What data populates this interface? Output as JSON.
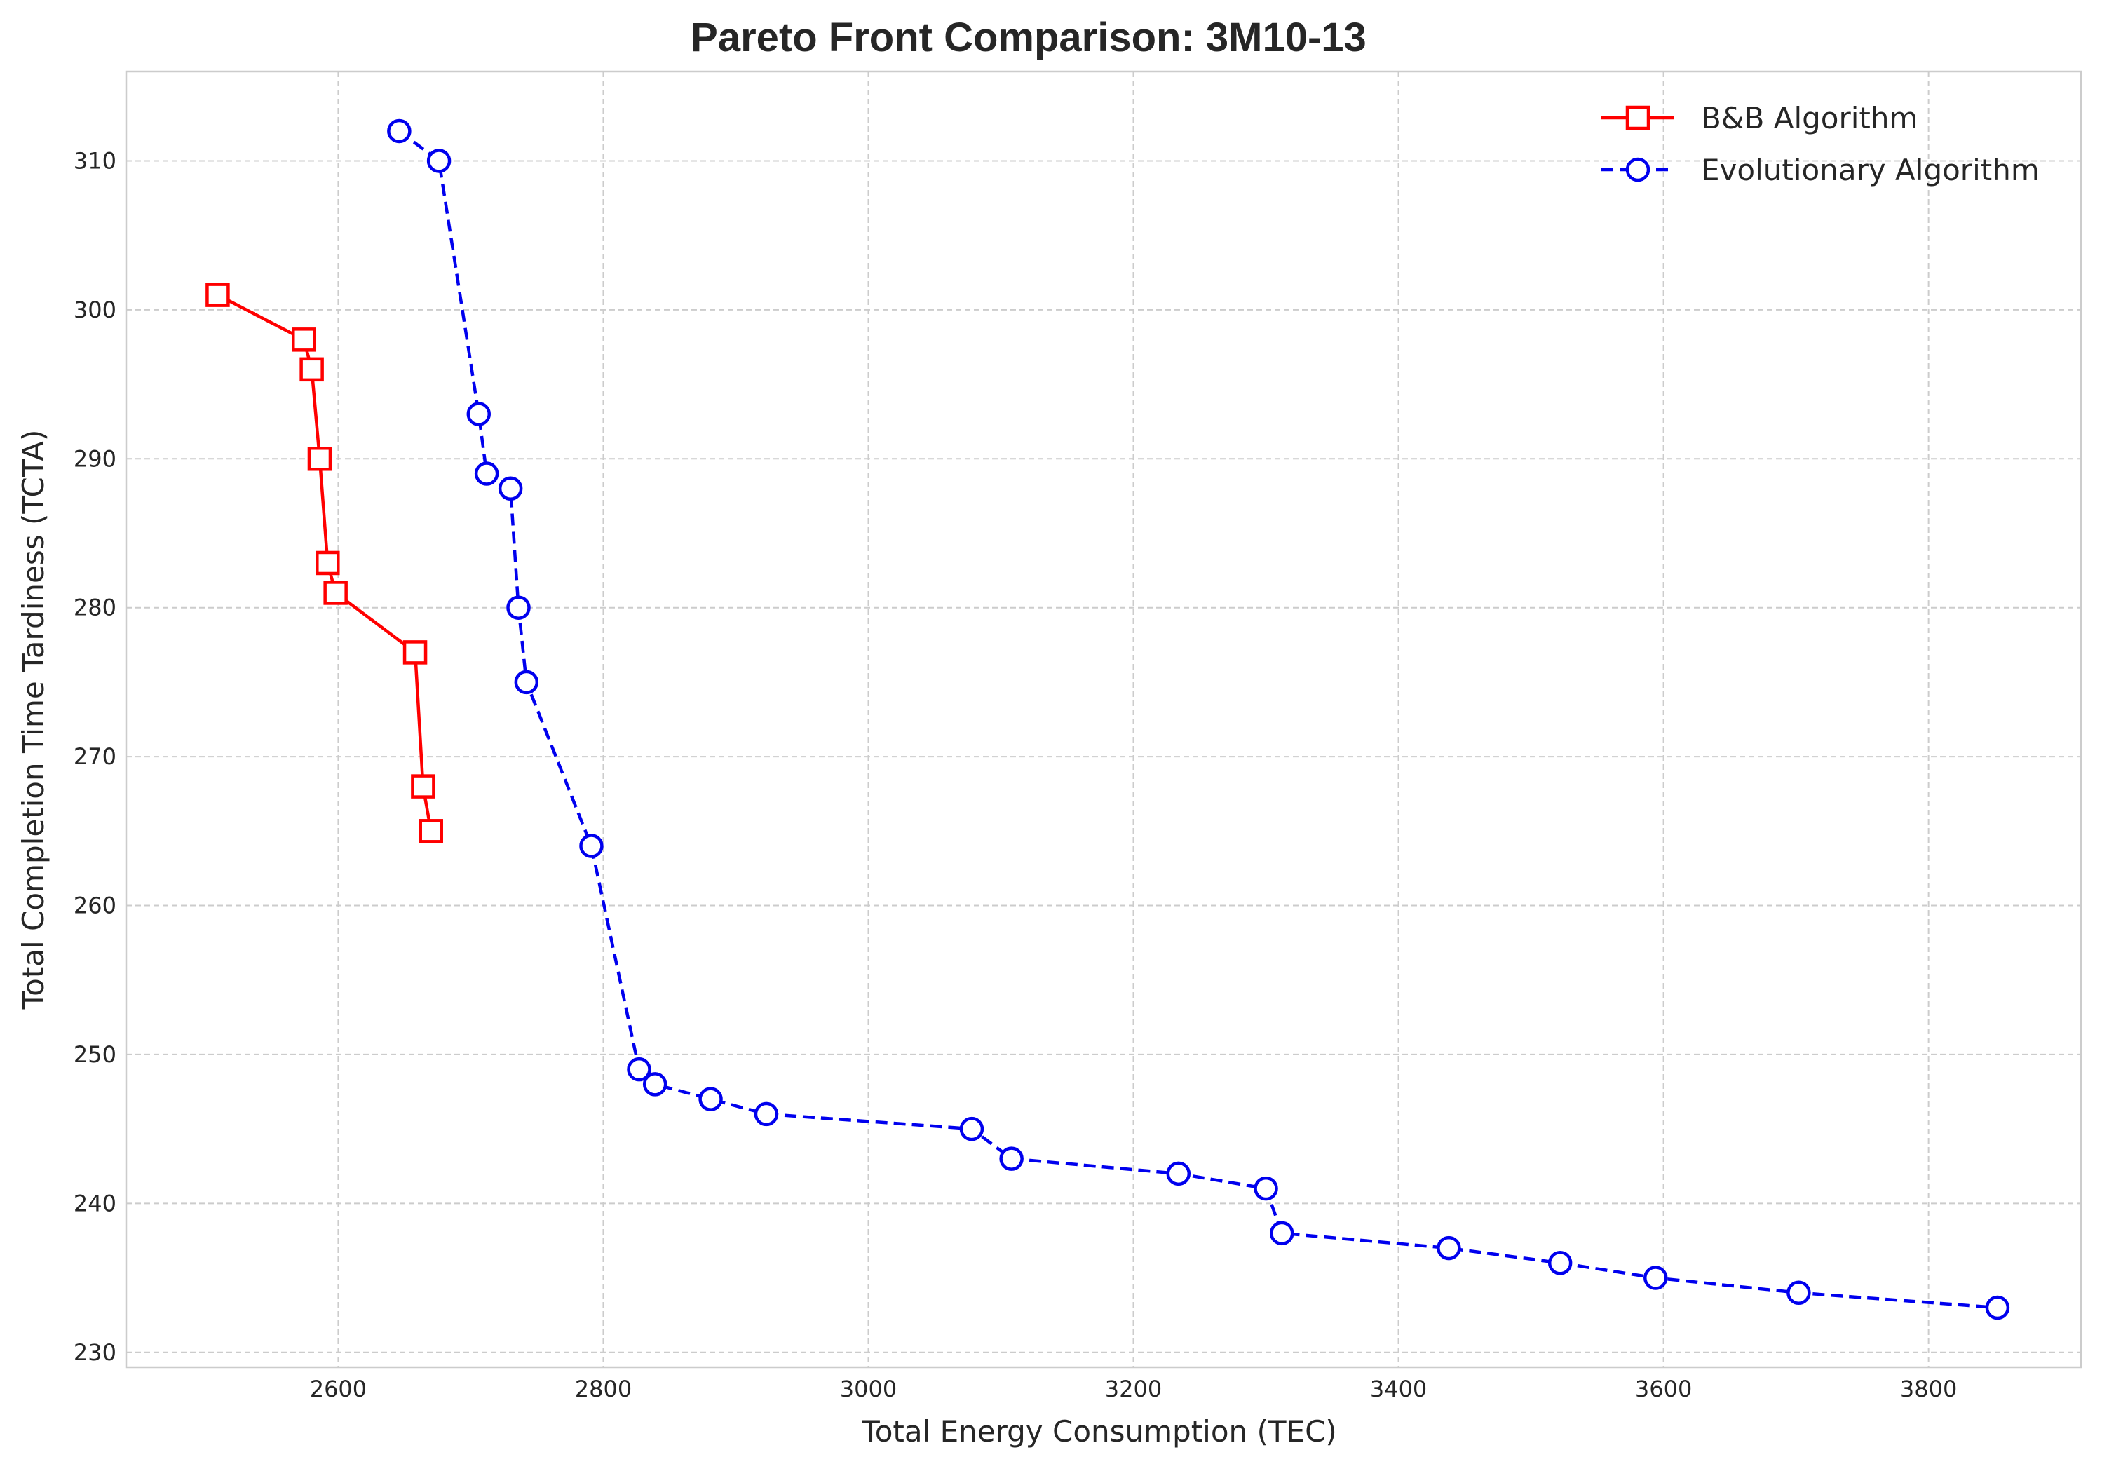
{
  "chart_data": {
    "type": "line",
    "title": "Pareto Front Comparison: 3M10-13",
    "xlabel": "Total Energy Consumption (TEC)",
    "ylabel": "Total Completion Time Tardiness (TCTA)",
    "xlim": [
      2440,
      3915
    ],
    "ylim": [
      229,
      316
    ],
    "xticks": [
      2600,
      2800,
      3000,
      3200,
      3400,
      3600,
      3800
    ],
    "yticks": [
      230,
      240,
      250,
      260,
      270,
      280,
      290,
      300,
      310
    ],
    "grid": true,
    "legend_position": "top-right",
    "series": [
      {
        "name": "B&B Algorithm",
        "color": "#ff0000",
        "line_style": "solid",
        "marker": "square",
        "x": [
          2509,
          2574,
          2580,
          2586,
          2592,
          2598,
          2658,
          2664,
          2670
        ],
        "y": [
          301,
          298,
          296,
          290,
          283,
          281,
          277,
          268,
          265
        ]
      },
      {
        "name": "Evolutionary Algorithm",
        "color": "#0000ee",
        "line_style": "dashed",
        "marker": "circle",
        "x": [
          2646,
          2676,
          2706,
          2712,
          2730,
          2736,
          2742,
          2791,
          2827,
          2839,
          2881,
          2923,
          3078,
          3108,
          3234,
          3300,
          3312,
          3438,
          3522,
          3594,
          3702,
          3852
        ],
        "y": [
          312,
          310,
          293,
          289,
          288,
          280,
          275,
          264,
          249,
          248,
          247,
          246,
          245,
          243,
          242,
          241,
          238,
          237,
          236,
          235,
          234,
          233
        ]
      }
    ]
  }
}
